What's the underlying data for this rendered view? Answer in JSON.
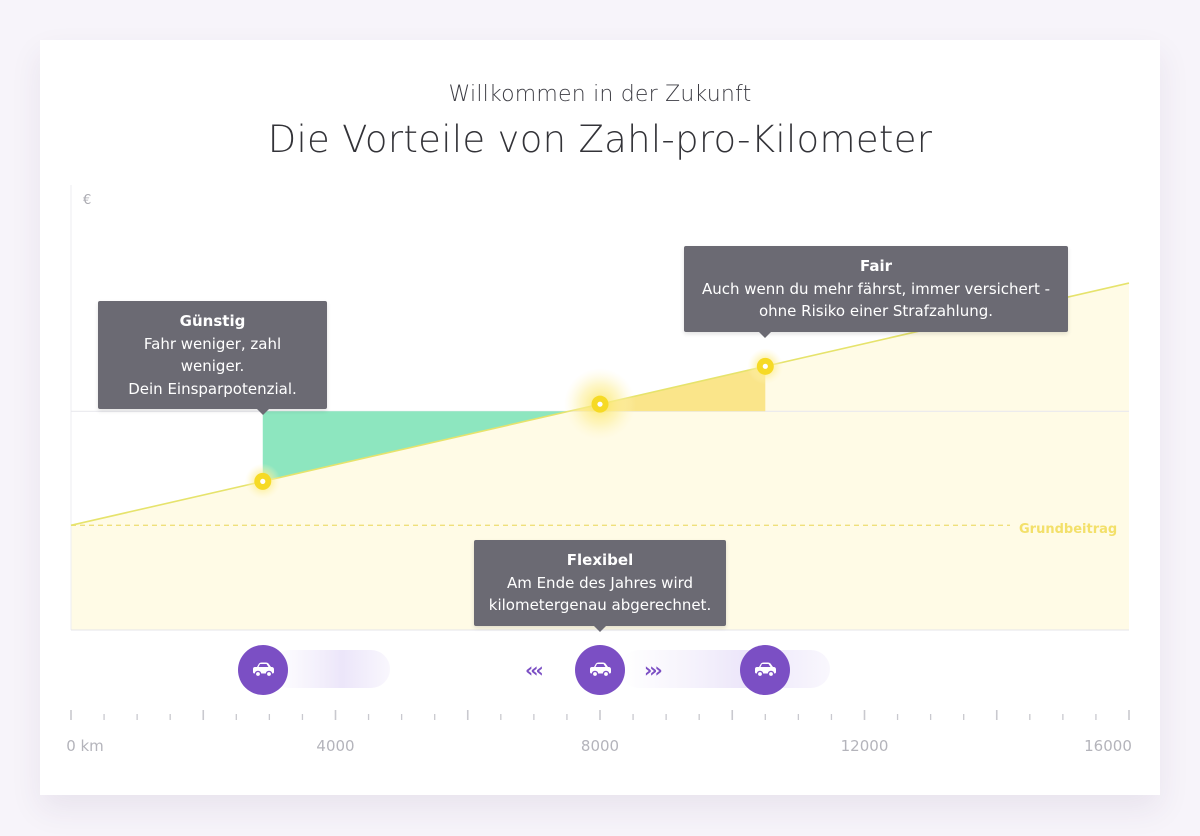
{
  "header": {
    "subtitle": "Willkommen in der Zukunft",
    "title": "Die Vorteile von Zahl-pro-Kilometer"
  },
  "chart_data": {
    "type": "line",
    "xlabel": "",
    "ylabel": "€",
    "x_unit": "km",
    "xlim": [
      0,
      16000
    ],
    "x_ticks": [
      0,
      4000,
      8000,
      12000,
      16000
    ],
    "tick_labels": [
      "0 km",
      "4000",
      "8000",
      "12000",
      "16000"
    ],
    "minor_tick_step": 500,
    "series": [
      {
        "name": "",
        "x": [
          0,
          16000
        ],
        "y": [
          1.0,
          3.55
        ]
      }
    ],
    "flat_rate": 2.2,
    "grundbeitrag": 1.0,
    "grundbeitrag_label": "Grundbeitrag",
    "highlights": [
      {
        "x": 2900,
        "kind": "saving",
        "color": "#8de6bf"
      },
      {
        "x": 10500,
        "kind": "extra",
        "color": "#fae58a"
      }
    ],
    "points": [
      2900,
      8000,
      10500
    ],
    "colors": {
      "line": "#e6e36c",
      "area": "#fffbe6",
      "saving": "#8de6bf",
      "extra": "#fae58a",
      "dot": "#f6da25",
      "accent": "#7b4fc4"
    }
  },
  "tooltips": {
    "guenstig": {
      "title": "Günstig",
      "line1": "Fahr weniger, zahl weniger.",
      "line2": "Dein Einsparpotenzial."
    },
    "fair": {
      "title": "Fair",
      "line1": "Auch wenn du mehr fährst, immer versichert -",
      "line2": "ohne Risiko einer Strafzahlung."
    },
    "flexibel": {
      "title": "Flexibel",
      "line1": "Am Ende des Jahres wird",
      "line2": "kilometergenau abgerechnet."
    }
  },
  "slider": {
    "left_chevrons": "‹‹‹",
    "right_chevrons": "›››",
    "icon": "car-icon"
  }
}
